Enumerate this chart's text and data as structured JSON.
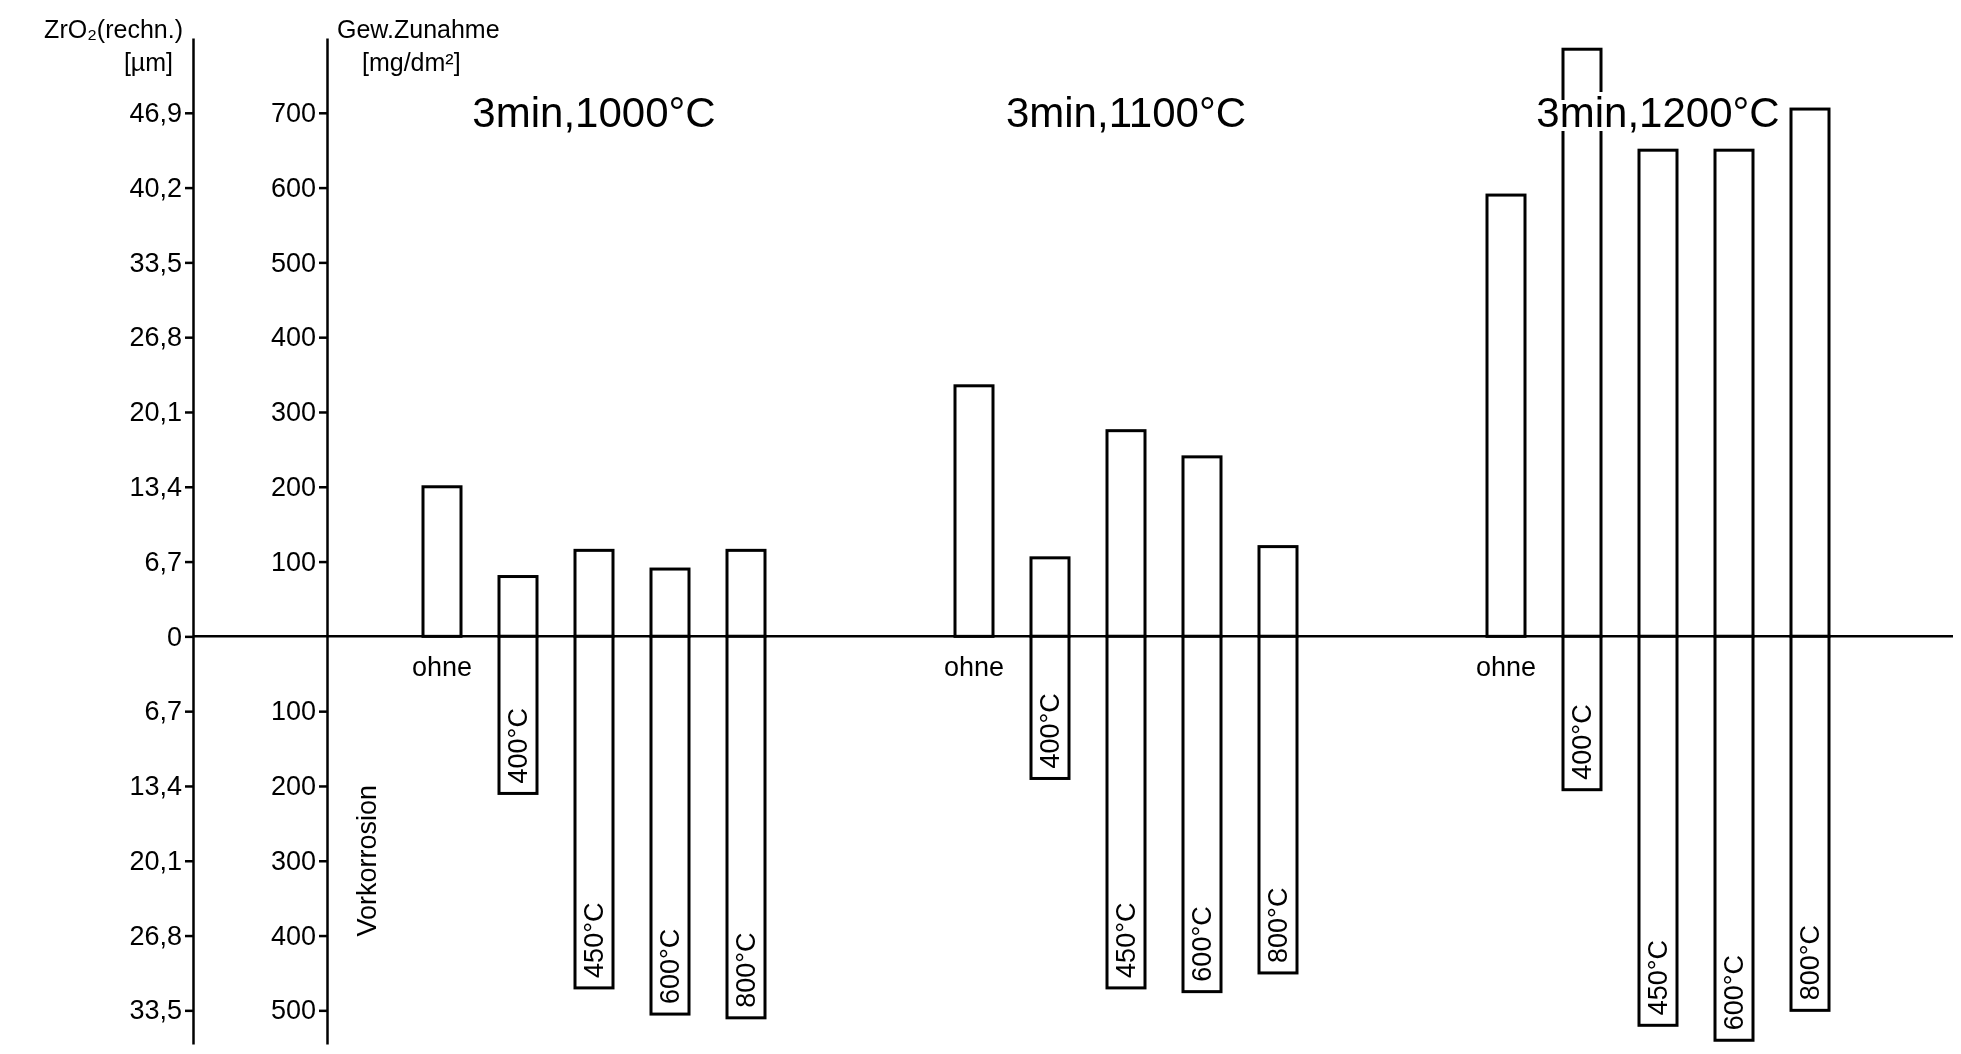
{
  "chart_data": {
    "type": "bar",
    "stacked": true,
    "ylabel": "Gew.Zunahme\n[mg/dm²]",
    "y2label": "ZrO₂(rechn.)\n[µm]",
    "categories": [
      null,
      "ohne",
      "400°C",
      "450°C",
      "600°C",
      "800°C",
      null,
      null,
      "ohne",
      "400°C",
      "450°C",
      "600°C",
      "800°C",
      null,
      null,
      "ohne",
      "400°C",
      "450°C",
      "600°C",
      "800°C"
    ],
    "series": [
      {
        "color": "#ffffff",
        "values": [
          null,
          200,
          80,
          115,
          90,
          115,
          null,
          null,
          335,
          105,
          275,
          240,
          120,
          null,
          null,
          590,
          785,
          650,
          650,
          705
        ]
      },
      {
        "color": "#ffffff",
        "values": [
          null,
          null,
          -210,
          -470,
          -505,
          -510,
          null,
          null,
          null,
          -190,
          -470,
          -475,
          -450,
          null,
          null,
          null,
          -205,
          -520,
          -540,
          -500
        ]
      }
    ],
    "ylim": [
      -545,
      800
    ],
    "yticks": [
      {
        "value": -500,
        "label": "500"
      },
      {
        "value": -400,
        "label": "400"
      },
      {
        "value": -300,
        "label": "300"
      },
      {
        "value": -200,
        "label": "200"
      },
      {
        "value": -100,
        "label": "100"
      },
      100,
      200,
      300,
      400,
      500,
      600,
      700
    ],
    "y2lim": [
      -36.515,
      53.6
    ],
    "y2ticks": [
      {
        "value": -33.5,
        "label": "33,5"
      },
      {
        "value": -26.8,
        "label": "26,8"
      },
      {
        "value": -20.1,
        "label": "20,1"
      },
      {
        "value": -13.4,
        "label": "13,4"
      },
      {
        "value": -6.7,
        "label": "6,7"
      },
      0,
      {
        "value": 6.7,
        "label": "6,7"
      },
      {
        "value": 13.4,
        "label": "13,4"
      },
      {
        "value": 20.1,
        "label": "20,1"
      },
      {
        "value": 26.8,
        "label": "26,8"
      },
      {
        "value": 33.5,
        "label": "33,5"
      },
      {
        "value": 40.2,
        "label": "40,2"
      },
      {
        "value": 46.9,
        "label": "46,9"
      }
    ],
    "annotations": [
      "3min,1000°C",
      "3min,1100°C",
      "3min,1200°C",
      "Vorkorrosion"
    ]
  }
}
